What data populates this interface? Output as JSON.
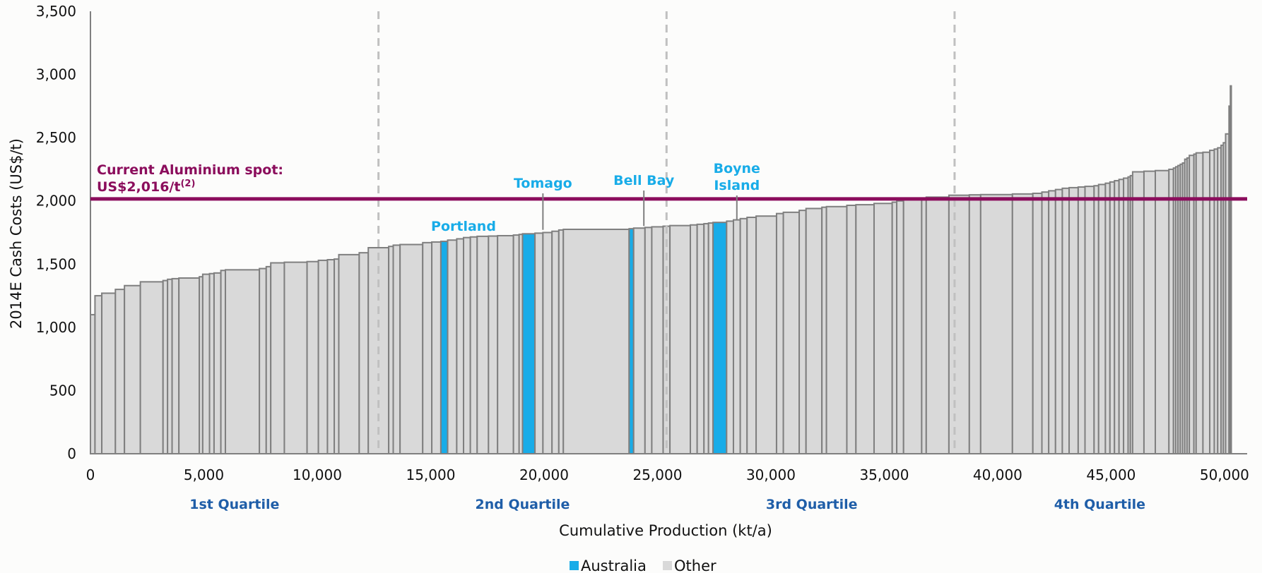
{
  "chart_data": {
    "type": "bar",
    "ylabel": "2014E Cash Costs (US$/t)",
    "xlabel": "Cumulative Production (kt/a)",
    "xlim": [
      0,
      51000
    ],
    "ylim": [
      0,
      3500
    ],
    "x_ticks": [
      "0",
      "5,000",
      "10,000",
      "15,000",
      "20,000",
      "25,000",
      "30,000",
      "35,000",
      "40,000",
      "45,000",
      "50,000"
    ],
    "y_ticks": [
      "0",
      "500",
      "1,000",
      "1,500",
      "2,000",
      "2,500",
      "3,000",
      "3,500"
    ],
    "quartile_boundaries": [
      12700,
      25400,
      38100
    ],
    "quartile_labels": [
      {
        "label": "1st Quartile",
        "x": 6350
      },
      {
        "label": "2nd Quartile",
        "x": 19050
      },
      {
        "label": "3rd Quartile",
        "x": 31800
      },
      {
        "label": "4th Quartile",
        "x": 44500
      }
    ],
    "spot_price": {
      "value": 2016,
      "label_line1": "Current Aluminium spot:",
      "label_line2": "US$2,016/t",
      "label_sup": "(2)",
      "color": "#8b0d5c"
    },
    "annotations": [
      {
        "lines": [
          "Portland"
        ],
        "x": 16450,
        "anchor_y": 1680,
        "pointer": false
      },
      {
        "lines": [
          "Tomago"
        ],
        "x": 19950,
        "anchor_y": 1760,
        "pointer": true
      },
      {
        "lines": [
          "Bell Bay"
        ],
        "x": 24400,
        "anchor_y": 1790,
        "pointer": true
      },
      {
        "lines": [
          "Boyne",
          "Island"
        ],
        "x": 28500,
        "anchor_y": 1840,
        "pointer": true
      }
    ],
    "legend": [
      {
        "name": "Australia",
        "color": "#18ace8"
      },
      {
        "name": "Other",
        "color": "#d9d9d9"
      }
    ],
    "highlight_color": "#18ace8",
    "bar_color": "#d9d9d9",
    "bar_edge_color": "#7f7f7f",
    "series": [
      {
        "name": "",
        "bars": [
          {
            "w": 200,
            "v": 1100
          },
          {
            "w": 300,
            "v": 1250
          },
          {
            "w": 600,
            "v": 1270
          },
          {
            "w": 400,
            "v": 1300
          },
          {
            "w": 700,
            "v": 1330
          },
          {
            "w": 1000,
            "v": 1360
          },
          {
            "w": 200,
            "v": 1370
          },
          {
            "w": 200,
            "v": 1380
          },
          {
            "w": 300,
            "v": 1385
          },
          {
            "w": 900,
            "v": 1390
          },
          {
            "w": 150,
            "v": 1400
          },
          {
            "w": 300,
            "v": 1420
          },
          {
            "w": 200,
            "v": 1425
          },
          {
            "w": 300,
            "v": 1430
          },
          {
            "w": 200,
            "v": 1450
          },
          {
            "w": 1500,
            "v": 1455
          },
          {
            "w": 300,
            "v": 1465
          },
          {
            "w": 200,
            "v": 1480
          },
          {
            "w": 600,
            "v": 1510
          },
          {
            "w": 1000,
            "v": 1515
          },
          {
            "w": 500,
            "v": 1520
          },
          {
            "w": 400,
            "v": 1530
          },
          {
            "w": 300,
            "v": 1535
          },
          {
            "w": 200,
            "v": 1540
          },
          {
            "w": 900,
            "v": 1575
          },
          {
            "w": 400,
            "v": 1590
          },
          {
            "w": 900,
            "v": 1630
          },
          {
            "w": 200,
            "v": 1640
          },
          {
            "w": 300,
            "v": 1650
          },
          {
            "w": 1000,
            "v": 1655
          },
          {
            "w": 400,
            "v": 1670
          },
          {
            "w": 400,
            "v": 1675
          },
          {
            "w": 300,
            "v": 1680,
            "au": true
          },
          {
            "w": 400,
            "v": 1690
          },
          {
            "w": 300,
            "v": 1700
          },
          {
            "w": 300,
            "v": 1710
          },
          {
            "w": 300,
            "v": 1715
          },
          {
            "w": 500,
            "v": 1720
          },
          {
            "w": 400,
            "v": 1722
          },
          {
            "w": 700,
            "v": 1725
          },
          {
            "w": 250,
            "v": 1730
          },
          {
            "w": 150,
            "v": 1735
          },
          {
            "w": 550,
            "v": 1740,
            "au": true
          },
          {
            "w": 350,
            "v": 1745
          },
          {
            "w": 400,
            "v": 1750
          },
          {
            "w": 300,
            "v": 1760
          },
          {
            "w": 200,
            "v": 1770
          },
          {
            "w": 2900,
            "v": 1775
          },
          {
            "w": 200,
            "v": 1780,
            "au": true
          },
          {
            "w": 500,
            "v": 1785
          },
          {
            "w": 300,
            "v": 1790
          },
          {
            "w": 500,
            "v": 1795
          },
          {
            "w": 300,
            "v": 1800
          },
          {
            "w": 900,
            "v": 1805
          },
          {
            "w": 300,
            "v": 1810
          },
          {
            "w": 300,
            "v": 1815
          },
          {
            "w": 200,
            "v": 1820
          },
          {
            "w": 200,
            "v": 1825
          },
          {
            "w": 600,
            "v": 1830,
            "au": true
          },
          {
            "w": 300,
            "v": 1840
          },
          {
            "w": 300,
            "v": 1850
          },
          {
            "w": 300,
            "v": 1860
          },
          {
            "w": 400,
            "v": 1870
          },
          {
            "w": 900,
            "v": 1880
          },
          {
            "w": 300,
            "v": 1900
          },
          {
            "w": 700,
            "v": 1910
          },
          {
            "w": 300,
            "v": 1925
          },
          {
            "w": 700,
            "v": 1940
          },
          {
            "w": 200,
            "v": 1950
          },
          {
            "w": 900,
            "v": 1955
          },
          {
            "w": 400,
            "v": 1965
          },
          {
            "w": 800,
            "v": 1970
          },
          {
            "w": 800,
            "v": 1980
          },
          {
            "w": 200,
            "v": 1990
          },
          {
            "w": 300,
            "v": 2000
          },
          {
            "w": 800,
            "v": 2010
          },
          {
            "w": 200,
            "v": 2020
          },
          {
            "w": 1000,
            "v": 2030
          },
          {
            "w": 900,
            "v": 2045
          },
          {
            "w": 500,
            "v": 2048
          },
          {
            "w": 1400,
            "v": 2050
          },
          {
            "w": 900,
            "v": 2055
          },
          {
            "w": 400,
            "v": 2060
          },
          {
            "w": 300,
            "v": 2070
          },
          {
            "w": 300,
            "v": 2080
          },
          {
            "w": 300,
            "v": 2090
          },
          {
            "w": 300,
            "v": 2100
          },
          {
            "w": 400,
            "v": 2105
          },
          {
            "w": 300,
            "v": 2110
          },
          {
            "w": 400,
            "v": 2115
          },
          {
            "w": 200,
            "v": 2120
          },
          {
            "w": 300,
            "v": 2130
          },
          {
            "w": 200,
            "v": 2140
          },
          {
            "w": 200,
            "v": 2150
          },
          {
            "w": 200,
            "v": 2160
          },
          {
            "w": 200,
            "v": 2170
          },
          {
            "w": 200,
            "v": 2180
          },
          {
            "w": 100,
            "v": 2190
          },
          {
            "w": 100,
            "v": 2200
          },
          {
            "w": 500,
            "v": 2230
          },
          {
            "w": 500,
            "v": 2235
          },
          {
            "w": 600,
            "v": 2240
          },
          {
            "w": 200,
            "v": 2250
          },
          {
            "w": 100,
            "v": 2260
          },
          {
            "w": 100,
            "v": 2270
          },
          {
            "w": 100,
            "v": 2280
          },
          {
            "w": 100,
            "v": 2290
          },
          {
            "w": 100,
            "v": 2300
          },
          {
            "w": 100,
            "v": 2330
          },
          {
            "w": 100,
            "v": 2340
          },
          {
            "w": 200,
            "v": 2360
          },
          {
            "w": 100,
            "v": 2370
          },
          {
            "w": 300,
            "v": 2380
          },
          {
            "w": 300,
            "v": 2385
          },
          {
            "w": 200,
            "v": 2400
          },
          {
            "w": 150,
            "v": 2410
          },
          {
            "w": 150,
            "v": 2420
          },
          {
            "w": 100,
            "v": 2440
          },
          {
            "w": 100,
            "v": 2460
          },
          {
            "w": 150,
            "v": 2530
          },
          {
            "w": 60,
            "v": 2750
          },
          {
            "w": 40,
            "v": 2910
          }
        ]
      }
    ]
  }
}
